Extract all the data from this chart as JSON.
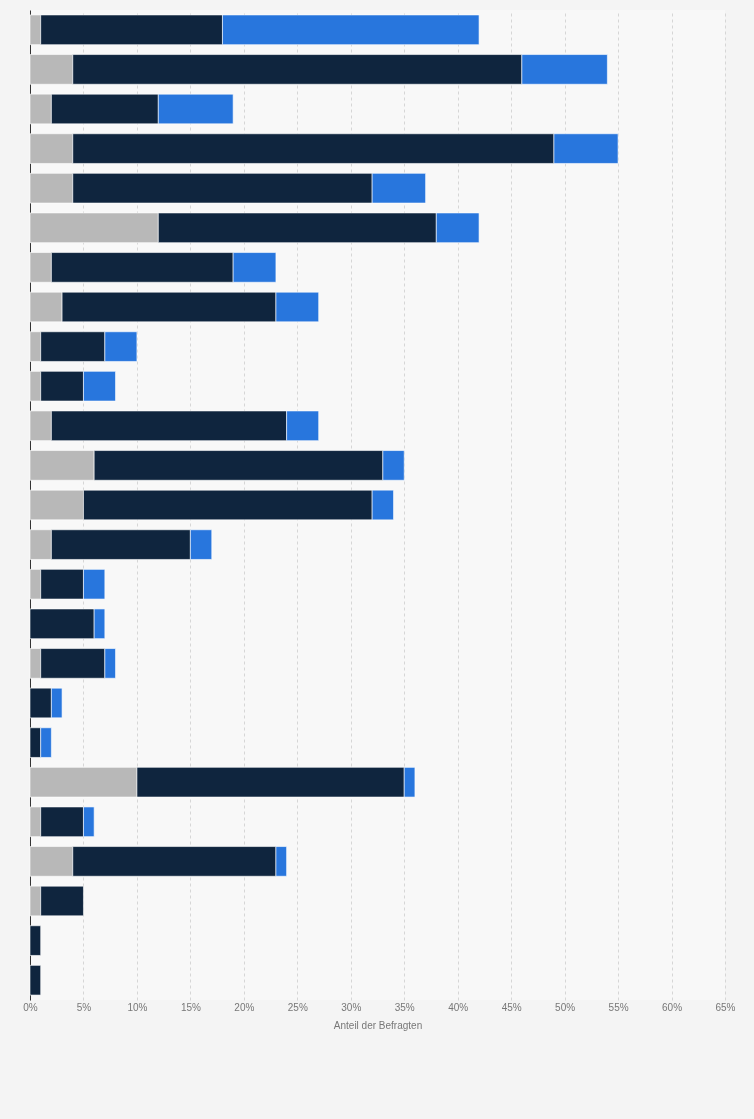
{
  "chart_data": {
    "type": "bar",
    "orientation": "horizontal",
    "stacked": true,
    "xlabel": "Anteil der Befragten",
    "categories": [
      null,
      null,
      null,
      null,
      null,
      null,
      null,
      null,
      null,
      null,
      null,
      null,
      null,
      null,
      null,
      null,
      null,
      null,
      null,
      null,
      null,
      null,
      null,
      null,
      null
    ],
    "series": [
      {
        "color": "#b8b8b8",
        "values": [
          1,
          4,
          2,
          4,
          4,
          12,
          2,
          3,
          1,
          1,
          2,
          6,
          5,
          2,
          1,
          null,
          1,
          null,
          null,
          10,
          1,
          4,
          1,
          null,
          null
        ]
      },
      {
        "color": "#0f253e",
        "values": [
          17,
          42,
          10,
          45,
          28,
          26,
          17,
          20,
          6,
          4,
          22,
          27,
          27,
          13,
          4,
          6,
          6,
          2,
          1,
          25,
          4,
          19,
          4,
          1,
          1
        ]
      },
      {
        "color": "#2876dd",
        "values": [
          24,
          8,
          7,
          6,
          5,
          4,
          4,
          4,
          3,
          3,
          3,
          2,
          2,
          2,
          2,
          1,
          1,
          1,
          1,
          1,
          1,
          1,
          null,
          null,
          null
        ]
      }
    ],
    "xlim": [
      0,
      65
    ],
    "xticks": [
      {
        "value": 0,
        "label": "0%"
      },
      {
        "value": 5,
        "label": "5%"
      },
      {
        "value": 10,
        "label": "10%"
      },
      {
        "value": 15,
        "label": "15%"
      },
      {
        "value": 20,
        "label": "20%"
      },
      {
        "value": 25,
        "label": "25%"
      },
      {
        "value": 30,
        "label": "30%"
      },
      {
        "value": 35,
        "label": "35%"
      },
      {
        "value": 40,
        "label": "40%"
      },
      {
        "value": 45,
        "label": "45%"
      },
      {
        "value": 50,
        "label": "50%"
      },
      {
        "value": 55,
        "label": "55%"
      },
      {
        "value": 60,
        "label": "60%"
      },
      {
        "value": 65,
        "label": "65%"
      }
    ],
    "grid": "x",
    "tick_labels": "x"
  }
}
